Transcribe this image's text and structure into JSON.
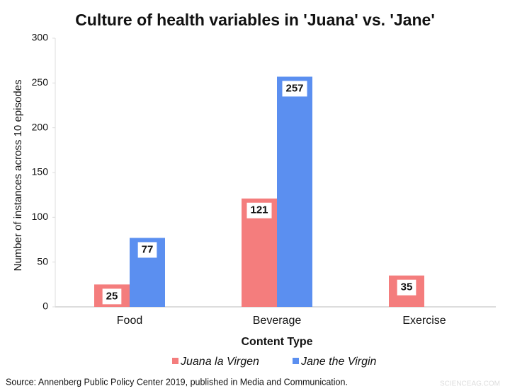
{
  "chart_data": {
    "type": "bar",
    "title": "Culture of health variables in 'Juana' vs. 'Jane'",
    "x_label": "Content Type",
    "y_label": "Number of instances across 10 episodes",
    "categories": [
      "Food",
      "Beverage",
      "Exercise"
    ],
    "series": [
      {
        "name": "Juana la Virgen",
        "color": "#f47d7d",
        "values": [
          25,
          121,
          35
        ]
      },
      {
        "name": "Jane the Virgin",
        "color": "#5b8ff0",
        "values": [
          77,
          257,
          null
        ]
      }
    ],
    "ylim": [
      0,
      300
    ],
    "yticks": [
      0,
      50,
      100,
      150,
      200,
      250,
      300
    ],
    "grid": false,
    "legend": "bottom",
    "source": "Source: Annenberg Public Policy Center 2019, published in Media and Communication.",
    "watermark": "SCIENCEAG.COM"
  }
}
